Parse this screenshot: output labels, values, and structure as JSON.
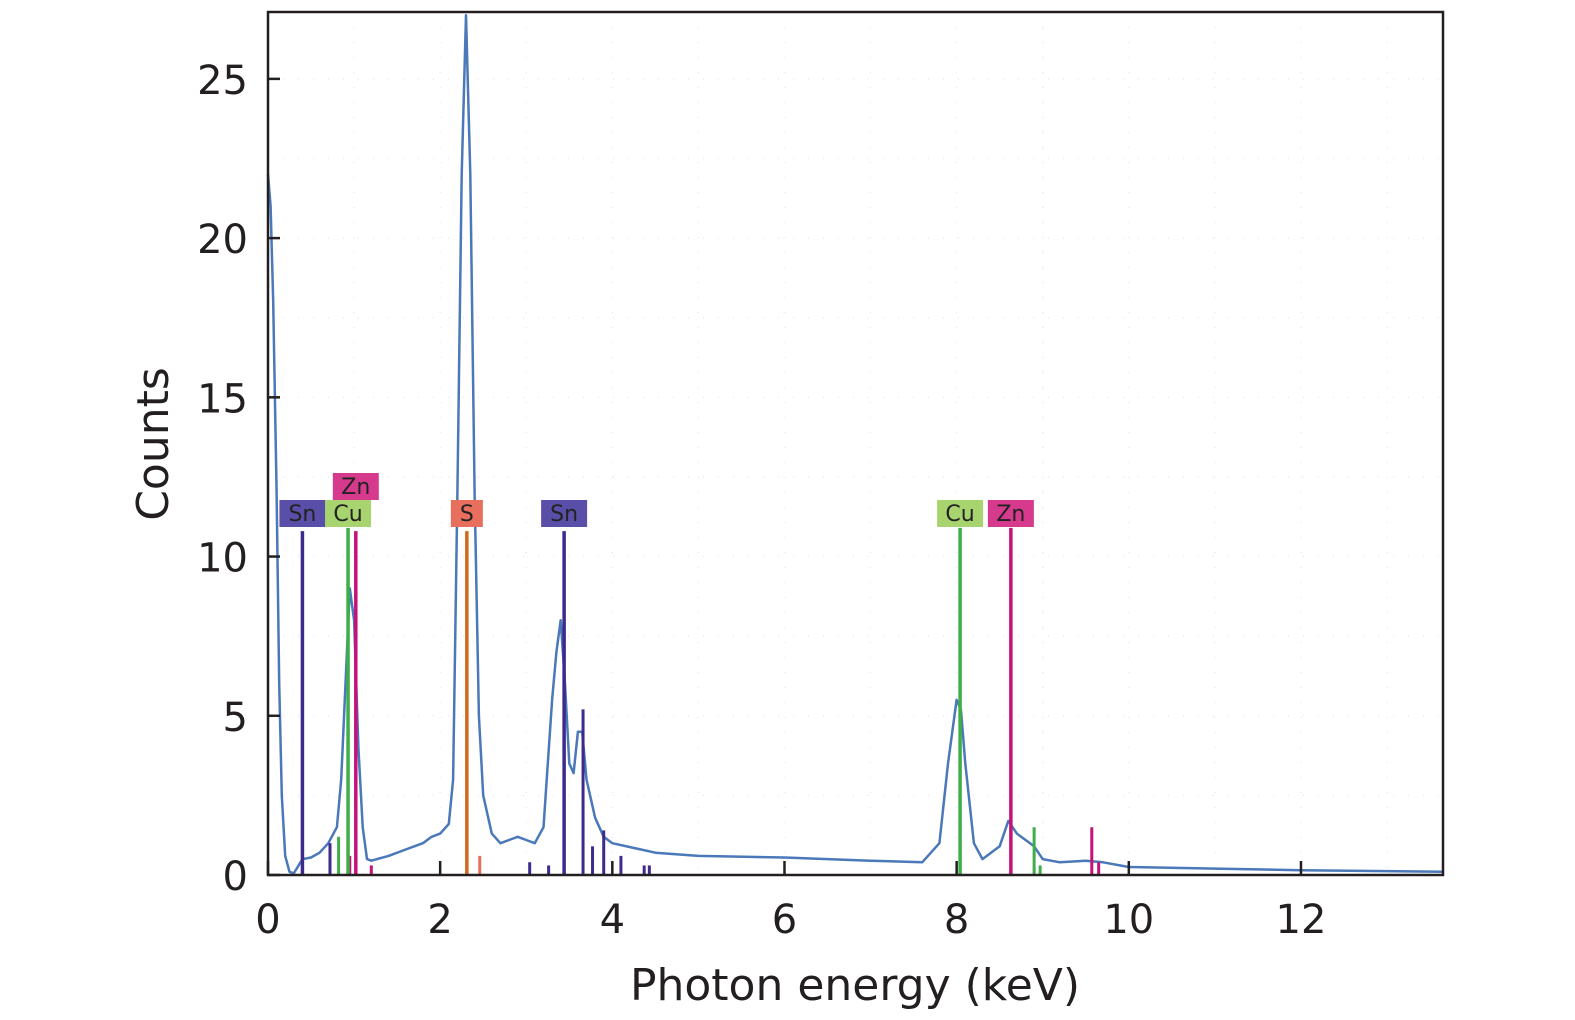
{
  "chart_data": {
    "type": "line",
    "title": "",
    "xlabel": "Photon energy (keV)",
    "ylabel": "Counts",
    "xlim": [
      0,
      13.65
    ],
    "ylim": [
      0,
      27.1
    ],
    "xticks": [
      0,
      2,
      4,
      6,
      8,
      10,
      12
    ],
    "yticks": [
      0,
      5,
      10,
      15,
      20,
      25
    ],
    "grid": "faint dotted",
    "legend": "none",
    "spectrum_color": "#4a78b8",
    "spectrum": {
      "x": [
        0,
        0.03,
        0.06,
        0.1,
        0.13,
        0.16,
        0.2,
        0.25,
        0.3,
        0.4,
        0.5,
        0.6,
        0.7,
        0.8,
        0.85,
        0.9,
        0.95,
        1.0,
        1.05,
        1.1,
        1.15,
        1.2,
        1.4,
        1.6,
        1.8,
        1.9,
        2.0,
        2.1,
        2.15,
        2.2,
        2.25,
        2.3,
        2.35,
        2.4,
        2.45,
        2.5,
        2.6,
        2.7,
        2.8,
        2.9,
        3.0,
        3.1,
        3.2,
        3.3,
        3.35,
        3.4,
        3.45,
        3.5,
        3.55,
        3.6,
        3.65,
        3.7,
        3.8,
        3.9,
        4.0,
        4.5,
        5.0,
        6.0,
        7.0,
        7.6,
        7.8,
        7.9,
        8.0,
        8.05,
        8.1,
        8.2,
        8.3,
        8.5,
        8.6,
        8.7,
        8.9,
        9.0,
        9.2,
        9.5,
        9.7,
        10.0,
        11.0,
        12.0,
        13.65
      ],
      "y": [
        22,
        21,
        18,
        12,
        6,
        2.5,
        0.6,
        0.1,
        0.05,
        0.5,
        0.55,
        0.7,
        1.0,
        1.5,
        3.0,
        6.0,
        9.0,
        8.0,
        4.0,
        1.5,
        0.5,
        0.45,
        0.6,
        0.8,
        1.0,
        1.2,
        1.3,
        1.6,
        3.0,
        12,
        22,
        27,
        22,
        12,
        5,
        2.5,
        1.3,
        1.0,
        1.1,
        1.2,
        1.1,
        1.0,
        1.5,
        5.5,
        7.0,
        8.0,
        6.0,
        3.5,
        3.2,
        4.5,
        4.5,
        3.0,
        1.8,
        1.2,
        1.0,
        0.7,
        0.6,
        0.55,
        0.45,
        0.4,
        1.0,
        3.5,
        5.5,
        5.2,
        3.5,
        1.0,
        0.5,
        0.9,
        1.7,
        1.3,
        0.9,
        0.5,
        0.4,
        0.45,
        0.4,
        0.25,
        0.2,
        0.15,
        0.1
      ]
    },
    "element_markers": [
      {
        "element": "Sn",
        "energy": 0.4,
        "height": 10.8,
        "color": "#5a4fa8",
        "line_color": "#3d2a8c",
        "row": 0
      },
      {
        "element": "Cu",
        "energy": 0.93,
        "height": 10.9,
        "color": "#a8d46f",
        "line_color": "#3fae49",
        "row": 0
      },
      {
        "element": "Zn",
        "energy": 1.02,
        "height": 10.8,
        "color": "#d63a8c",
        "line_color": "#c4127a",
        "row": 1
      },
      {
        "element": "S",
        "energy": 2.31,
        "height": 10.8,
        "color": "#e86f5e",
        "line_color": "#d2691e",
        "row": 0
      },
      {
        "element": "Sn",
        "energy": 3.44,
        "height": 10.8,
        "color": "#5a4fa8",
        "line_color": "#3d2a8c",
        "row": 0
      },
      {
        "element": "Cu",
        "energy": 8.04,
        "height": 10.9,
        "color": "#a8d46f",
        "line_color": "#3fae49",
        "row": 0
      },
      {
        "element": "Zn",
        "energy": 8.63,
        "height": 10.9,
        "color": "#d63a8c",
        "line_color": "#c4127a",
        "row": 0
      }
    ],
    "minor_lines": [
      {
        "energy": 0.72,
        "height": 1.0,
        "color": "#3d2a8c"
      },
      {
        "energy": 0.82,
        "height": 1.2,
        "color": "#3fae49"
      },
      {
        "energy": 0.95,
        "height": 0.6,
        "color": "#c4127a"
      },
      {
        "energy": 1.2,
        "height": 0.3,
        "color": "#c4127a"
      },
      {
        "energy": 2.46,
        "height": 0.6,
        "color": "#e86f5e"
      },
      {
        "energy": 3.04,
        "height": 0.4,
        "color": "#3d2a8c"
      },
      {
        "energy": 3.26,
        "height": 0.3,
        "color": "#3d2a8c"
      },
      {
        "energy": 3.66,
        "height": 5.2,
        "color": "#3d2a8c"
      },
      {
        "energy": 3.77,
        "height": 0.9,
        "color": "#3d2a8c"
      },
      {
        "energy": 3.9,
        "height": 1.4,
        "color": "#3d2a8c"
      },
      {
        "energy": 4.1,
        "height": 0.6,
        "color": "#3d2a8c"
      },
      {
        "energy": 4.37,
        "height": 0.3,
        "color": "#3d2a8c"
      },
      {
        "energy": 4.43,
        "height": 0.3,
        "color": "#3d2a8c"
      },
      {
        "energy": 8.9,
        "height": 1.5,
        "color": "#3fae49"
      },
      {
        "energy": 8.97,
        "height": 0.3,
        "color": "#3fae49"
      },
      {
        "energy": 9.57,
        "height": 1.5,
        "color": "#c4127a"
      },
      {
        "energy": 9.65,
        "height": 0.4,
        "color": "#c4127a"
      }
    ]
  }
}
